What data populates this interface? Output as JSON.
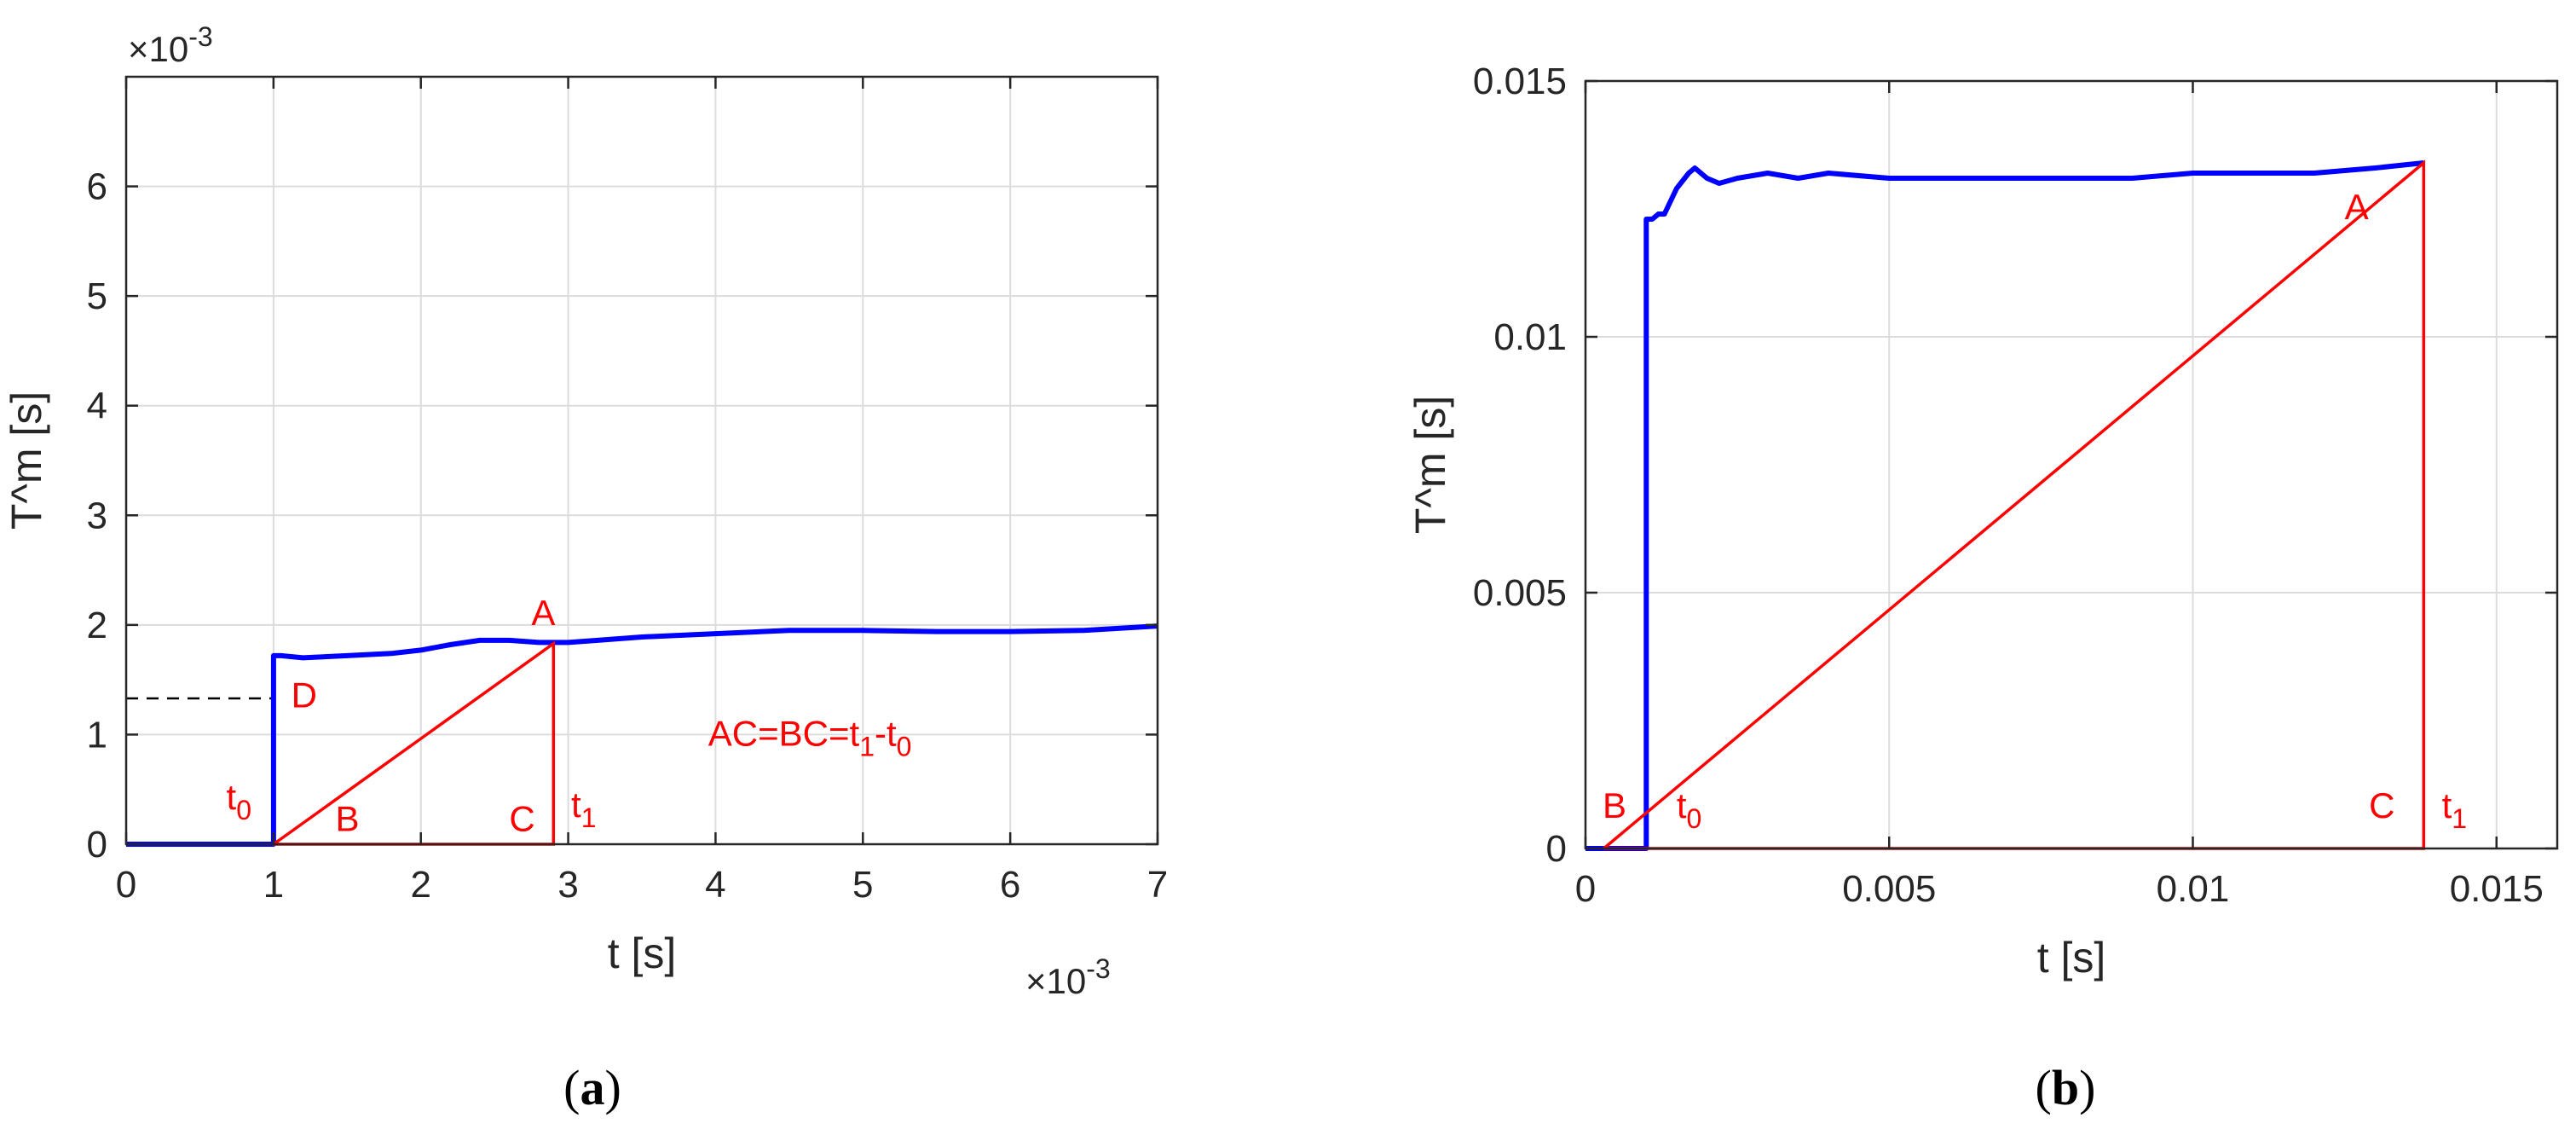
{
  "panels": [
    {
      "caption_open": "(",
      "caption_letter": "a",
      "caption_close": ")",
      "exp_top_times": "×10",
      "exp_top_power": "-3",
      "exp_bottom_times": "×10",
      "exp_bottom_power": "-3"
    },
    {
      "caption_open": "(",
      "caption_letter": "b",
      "caption_close": ")"
    }
  ],
  "colors": {
    "series": "#0000ff",
    "annotation": "#ff0000",
    "axis": "#262626",
    "grid": "#dcdcdc"
  },
  "chart_data": [
    {
      "type": "line",
      "xlabel": "t [s]",
      "ylabel": "T^m [s]",
      "x_scale_label": "×10^-3",
      "y_scale_label": "×10^-3",
      "xlim": [
        0,
        7
      ],
      "ylim": [
        0,
        7
      ],
      "xticks": [
        0,
        1,
        2,
        3,
        4,
        5,
        6,
        7
      ],
      "yticks": [
        0,
        1,
        2,
        3,
        4,
        5,
        6
      ],
      "grid": true,
      "series": [
        {
          "color": "#0000ff",
          "x": [
            0,
            1.0,
            1.0,
            1.05,
            1.2,
            1.5,
            1.8,
            2.0,
            2.2,
            2.4,
            2.6,
            2.8,
            2.9,
            3.0,
            3.2,
            3.5,
            4.0,
            4.5,
            5.0,
            5.5,
            6.0,
            6.5,
            7.0
          ],
          "y": [
            0,
            0,
            1.72,
            1.72,
            1.7,
            1.72,
            1.74,
            1.77,
            1.82,
            1.86,
            1.86,
            1.84,
            1.84,
            1.84,
            1.86,
            1.89,
            1.92,
            1.95,
            1.95,
            1.94,
            1.94,
            1.95,
            1.99
          ]
        }
      ],
      "annotations": {
        "triangle_x": [
          1.0,
          2.9,
          2.9,
          1.0
        ],
        "triangle_y": [
          0,
          1.83,
          0,
          0
        ],
        "dashed_x": [
          0,
          1.0
        ],
        "dashed_y": [
          1.33,
          1.33
        ],
        "labels": [
          {
            "text": "A",
            "x": 2.75,
            "y": 2.0
          },
          {
            "text": "B",
            "x": 1.42,
            "y": 0.12
          },
          {
            "text": "C",
            "x": 2.6,
            "y": 0.12
          },
          {
            "text": "D",
            "x": 1.12,
            "y": 1.25
          },
          {
            "text": "t",
            "sub": "0",
            "x": 0.68,
            "y": 0.32
          },
          {
            "text": "t",
            "sub": "1",
            "x": 3.02,
            "y": 0.25
          },
          {
            "text": "AC=BC=t",
            "sub": "1",
            "after": "-t",
            "sub2": "0",
            "x": 3.95,
            "y": 0.9
          }
        ]
      }
    },
    {
      "type": "line",
      "xlabel": "t [s]",
      "ylabel": "T^m [s]",
      "xlim": [
        0,
        0.016
      ],
      "ylim": [
        0,
        0.015
      ],
      "xticks": [
        0,
        0.005,
        0.01,
        0.015
      ],
      "xtick_labels": [
        "0",
        "0.005",
        "0.01",
        "0.015"
      ],
      "yticks": [
        0,
        0.005,
        0.01,
        0.015
      ],
      "ytick_labels": [
        "0",
        "0.005",
        "0.01",
        "0.015"
      ],
      "grid": true,
      "series": [
        {
          "color": "#0000ff",
          "x": [
            0,
            0.001,
            0.001,
            0.0011,
            0.0012,
            0.0013,
            0.0015,
            0.0017,
            0.0018,
            0.002,
            0.0022,
            0.0025,
            0.003,
            0.0035,
            0.004,
            0.005,
            0.006,
            0.007,
            0.008,
            0.009,
            0.01,
            0.011,
            0.012,
            0.013,
            0.0138
          ],
          "y": [
            0,
            0,
            0.0123,
            0.0123,
            0.0124,
            0.0124,
            0.0129,
            0.0132,
            0.0133,
            0.0131,
            0.013,
            0.0131,
            0.0132,
            0.0131,
            0.0132,
            0.0131,
            0.0131,
            0.0131,
            0.0131,
            0.0131,
            0.0132,
            0.0132,
            0.0132,
            0.0133,
            0.0134
          ]
        }
      ],
      "annotations": {
        "triangle_x": [
          0.0003,
          0.0138,
          0.0138,
          0.0003
        ],
        "triangle_y": [
          0,
          0.0134,
          0,
          0
        ],
        "labels": [
          {
            "text": "A",
            "x": 0.0125,
            "y": 0.0123
          },
          {
            "text": "B",
            "x": 0.00028,
            "y": 0.0006
          },
          {
            "text": "C",
            "x": 0.0129,
            "y": 0.0006
          },
          {
            "text": "t",
            "sub": "0",
            "x": 0.0015,
            "y": 0.0006
          },
          {
            "text": "t",
            "sub": "1",
            "x": 0.0141,
            "y": 0.0006
          }
        ]
      }
    }
  ]
}
